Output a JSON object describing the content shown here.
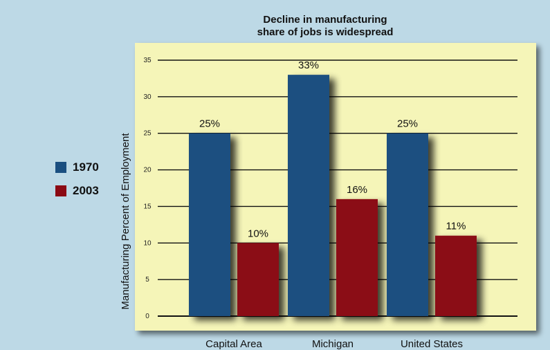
{
  "colors": {
    "background": "#bdd9e6",
    "plot_background": "#f5f5b8",
    "series_1970": "#1a4f80",
    "series_2003": "#8b0a14"
  },
  "chart_data": {
    "type": "bar",
    "title": "Decline in manufacturing\nshare of jobs is widespread",
    "title_lines": [
      "Decline in manufacturing",
      "share of jobs is widespread"
    ],
    "ylabel": "Manufacturing Percent of Employment",
    "xlabel": "",
    "ylim": [
      0,
      35
    ],
    "yticks": [
      0,
      5,
      10,
      15,
      20,
      25,
      30,
      35
    ],
    "grid": true,
    "legend_position": "left",
    "categories": [
      "Capital Area",
      "Michigan",
      "United States"
    ],
    "series": [
      {
        "name": "1970",
        "values": [
          25,
          33,
          25
        ],
        "labels": [
          "25%",
          "33%",
          "25%"
        ]
      },
      {
        "name": "2003",
        "values": [
          10,
          16,
          11
        ],
        "labels": [
          "10%",
          "16%",
          "11%"
        ]
      }
    ]
  }
}
